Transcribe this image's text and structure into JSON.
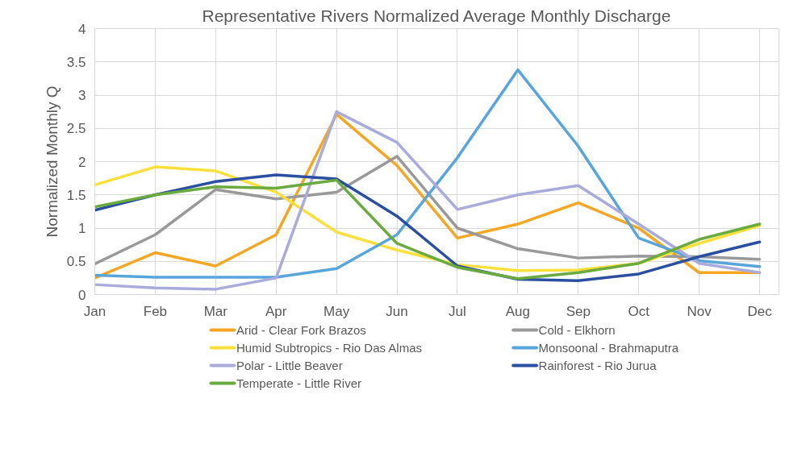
{
  "chart_data": {
    "type": "line",
    "title": "Representative Rivers Normalized Average Monthly Discharge",
    "ylabel": "Normalized Monthly Q",
    "categories": [
      "Jan",
      "Feb",
      "Mar",
      "Apr",
      "May",
      "Jun",
      "Jul",
      "Aug",
      "Sep",
      "Oct",
      "Nov",
      "Dec"
    ],
    "ylim": [
      0,
      4
    ],
    "yticks": [
      0,
      0.5,
      1,
      1.5,
      2,
      2.5,
      3,
      3.5,
      4
    ],
    "grid": true,
    "legend": "bottom",
    "line_style": "solid",
    "series": [
      {
        "name": "Arid - Clear Fork Brazos",
        "color": "#f5a623",
        "values": [
          0.25,
          0.63,
          0.43,
          0.9,
          2.71,
          1.94,
          0.85,
          1.06,
          1.38,
          1.0,
          0.33,
          0.33
        ]
      },
      {
        "name": "Cold - Elkhorn",
        "color": "#999999",
        "values": [
          0.46,
          0.9,
          1.58,
          1.44,
          1.54,
          2.08,
          1.0,
          0.69,
          0.55,
          0.58,
          0.57,
          0.53
        ]
      },
      {
        "name": "Humid Subtropics - Rio Das Almas",
        "color": "#fbe03c",
        "values": [
          1.65,
          1.92,
          1.86,
          1.54,
          0.94,
          0.67,
          0.45,
          0.36,
          0.37,
          0.47,
          0.77,
          1.04
        ]
      },
      {
        "name": "Monsoonal - Brahmaputra",
        "color": "#58a5db",
        "values": [
          0.29,
          0.26,
          0.26,
          0.26,
          0.39,
          0.9,
          2.06,
          3.38,
          2.23,
          0.85,
          0.51,
          0.42
        ]
      },
      {
        "name": "Polar - Little Beaver",
        "color": "#aaaadb",
        "values": [
          0.15,
          0.1,
          0.08,
          0.25,
          2.75,
          2.29,
          1.28,
          1.5,
          1.64,
          1.06,
          0.47,
          0.33
        ]
      },
      {
        "name": "Rainforest - Rio Jurua",
        "color": "#2a4fa0",
        "values": [
          1.27,
          1.5,
          1.7,
          1.8,
          1.74,
          1.18,
          0.43,
          0.23,
          0.21,
          0.31,
          0.57,
          0.79
        ]
      },
      {
        "name": "Temperate - Little River",
        "color": "#6aaa3f",
        "values": [
          1.32,
          1.5,
          1.62,
          1.6,
          1.72,
          0.77,
          0.41,
          0.24,
          0.33,
          0.47,
          0.83,
          1.06
        ]
      }
    ]
  }
}
